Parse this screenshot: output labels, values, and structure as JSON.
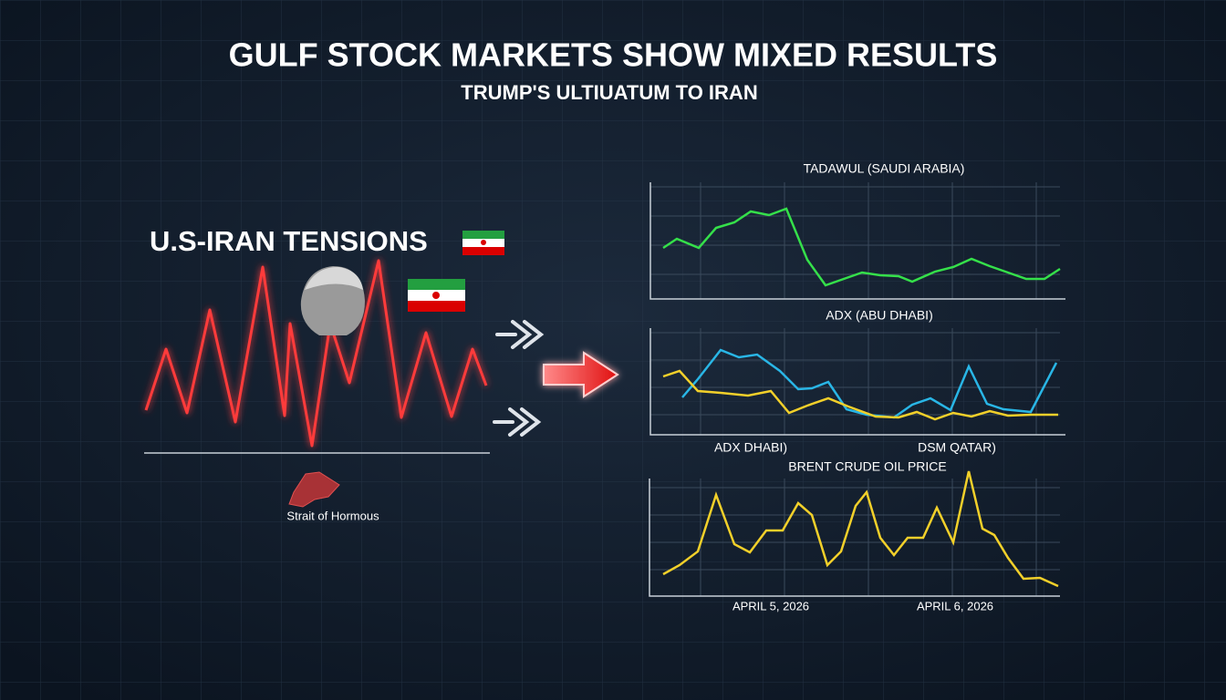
{
  "header": {
    "title": "GULF STOCK MARKETS SHOW MIXED RESULTS",
    "subtitle": "TRUMP'S ULTIUATUM TO IRAN"
  },
  "left_panel": {
    "label": "U.S-IRAN TENSIONS",
    "map_label": "Strait of Hormous"
  },
  "charts": [
    {
      "title": "TADAWUL (SAUDI ARABIA)"
    },
    {
      "title": "ADX (ABU DHABI)",
      "labels": [
        "ADX DHABI)",
        "DSM QATAR)"
      ]
    },
    {
      "title": "BRENT CRUDE OIL PRICE",
      "labels": [
        "APRIL 5, 2026",
        "APRIL 6, 2026"
      ]
    }
  ]
}
